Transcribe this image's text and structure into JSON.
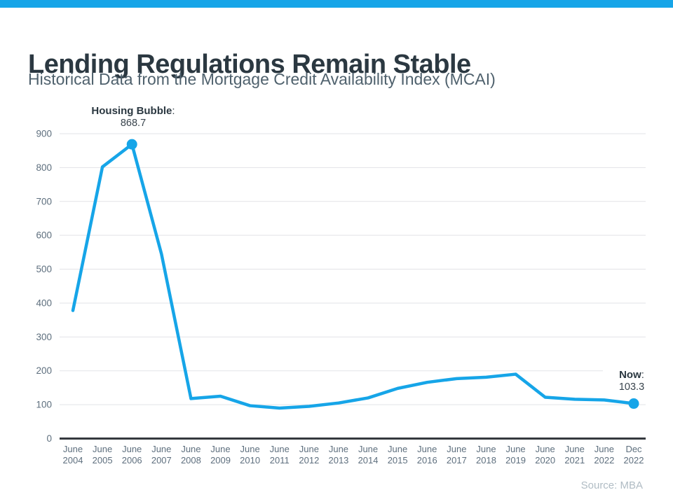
{
  "page": {
    "title": "Lending Regulations Remain Stable",
    "subtitle": "Historical Data from the Mortgage Credit Availability Index (MCAI)",
    "source": "Source: MBA"
  },
  "colors": {
    "accent": "#16a5e8",
    "title_text": "#2b3841",
    "subtitle_text": "#4f616d",
    "axis_label": "#5e6f7e",
    "gridline": "#e2e3e7",
    "axis_line": "#35393e",
    "source_text": "#b0bcc4"
  },
  "annotations": {
    "peak": {
      "label": "Housing Bubble",
      "colon": ":",
      "value": "868.7",
      "point_index": 2
    },
    "now": {
      "label": "Now",
      "colon": ":",
      "value": "103.3",
      "point_index": 19
    }
  },
  "chart_data": {
    "type": "line",
    "title": "Historical Data from the Mortgage Credit Availability Index (MCAI)",
    "xlabel": "",
    "ylabel": "",
    "ylim": [
      0,
      900
    ],
    "yticks": [
      0,
      100,
      200,
      300,
      400,
      500,
      600,
      700,
      800,
      900
    ],
    "grid": "horizontal",
    "legend": "none",
    "categories": [
      [
        "June",
        "2004"
      ],
      [
        "June",
        "2005"
      ],
      [
        "June",
        "2006"
      ],
      [
        "June",
        "2007"
      ],
      [
        "June",
        "2008"
      ],
      [
        "June",
        "2009"
      ],
      [
        "June",
        "2010"
      ],
      [
        "June",
        "2011"
      ],
      [
        "June",
        "2012"
      ],
      [
        "June",
        "2013"
      ],
      [
        "June",
        "2014"
      ],
      [
        "June",
        "2015"
      ],
      [
        "June",
        "2016"
      ],
      [
        "June",
        "2017"
      ],
      [
        "June",
        "2018"
      ],
      [
        "June",
        "2019"
      ],
      [
        "June",
        "2020"
      ],
      [
        "June",
        "2021"
      ],
      [
        "June",
        "2022"
      ],
      [
        "Dec",
        "2022"
      ]
    ],
    "series": [
      {
        "name": "Mortgage Credit Availability Index",
        "values": [
          378,
          802,
          868.7,
          545,
          118,
          125,
          97,
          90,
          95,
          105,
          120,
          148,
          166,
          177,
          181,
          190,
          122,
          116,
          114,
          103.3
        ]
      }
    ],
    "marker_indices": [
      2,
      19
    ]
  }
}
